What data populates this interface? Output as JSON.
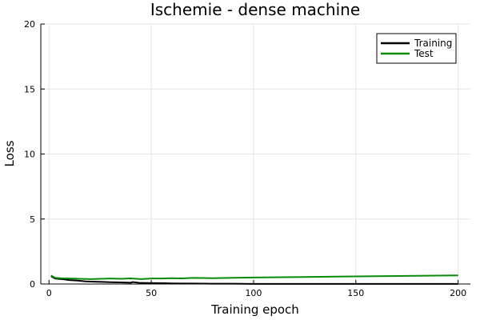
{
  "chart_data": {
    "type": "line",
    "title": "Ischemie - dense machine",
    "xlabel": "Training epoch",
    "ylabel": "Loss",
    "xlim": [
      -4,
      206
    ],
    "ylim": [
      0,
      20
    ],
    "xticks": [
      0,
      50,
      100,
      150,
      200
    ],
    "yticks": [
      0,
      5,
      10,
      15,
      20
    ],
    "grid": true,
    "legend_position": "top-right",
    "series": [
      {
        "name": "Training",
        "color": "#000000",
        "x": [
          1,
          3,
          6,
          10,
          14,
          18,
          22,
          26,
          30,
          35,
          40,
          41,
          44,
          48,
          52,
          56,
          60,
          65,
          70,
          75,
          80,
          90,
          100,
          120,
          140,
          160,
          180,
          200
        ],
        "y": [
          0.6,
          0.42,
          0.38,
          0.3,
          0.26,
          0.2,
          0.18,
          0.16,
          0.14,
          0.12,
          0.1,
          0.15,
          0.09,
          0.08,
          0.07,
          0.06,
          0.05,
          0.04,
          0.04,
          0.03,
          0.02,
          0.02,
          0.01,
          0.01,
          0.01,
          0.01,
          0.01,
          0.01
        ]
      },
      {
        "name": "Test",
        "color": "#0a8a0a",
        "x": [
          1,
          3,
          6,
          10,
          15,
          20,
          25,
          30,
          35,
          40,
          45,
          50,
          55,
          60,
          65,
          70,
          80,
          90,
          100,
          120,
          140,
          160,
          180,
          200
        ],
        "y": [
          0.65,
          0.48,
          0.44,
          0.42,
          0.4,
          0.38,
          0.4,
          0.42,
          0.4,
          0.43,
          0.38,
          0.42,
          0.42,
          0.45,
          0.43,
          0.47,
          0.45,
          0.48,
          0.5,
          0.53,
          0.57,
          0.6,
          0.63,
          0.66
        ]
      }
    ]
  }
}
